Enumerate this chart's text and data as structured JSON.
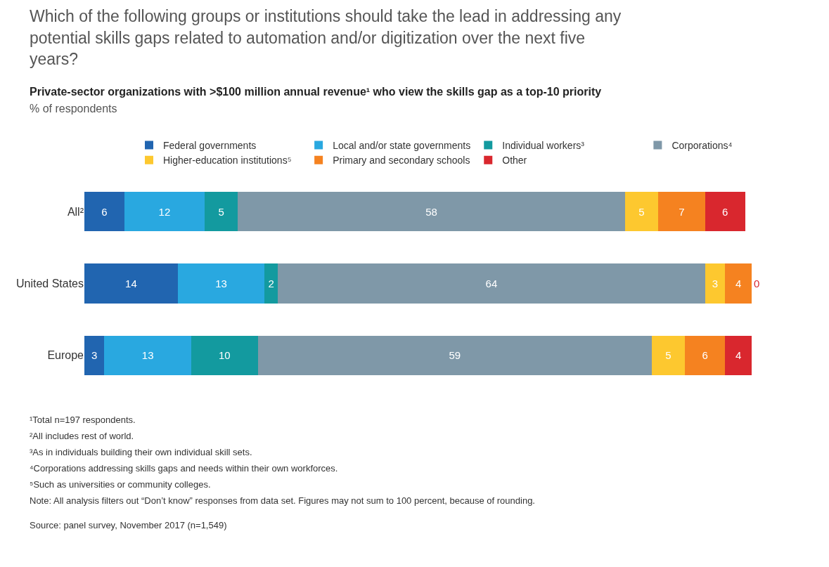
{
  "chart_data": {
    "type": "bar",
    "orientation": "horizontal",
    "stacked": true,
    "data_labels": true,
    "legend": "top",
    "title": "Which of the following groups or institutions should take the lead in addressing any potential skills gaps related to automation and/or digitization over the next five years?",
    "subtitle": "Private-sector organizations with >$100 million annual revenue¹ who view the skills gap as a top-10 priority",
    "categories": [
      "All²",
      "United States",
      "Europe"
    ],
    "series": [
      {
        "name": "Federal governments",
        "color": "#2165b0",
        "values": [
          6,
          14,
          3
        ]
      },
      {
        "name": "Local and/or state governments",
        "color": "#29a8e0",
        "values": [
          12,
          13,
          13
        ]
      },
      {
        "name": "Individual workers³",
        "color": "#139a9f",
        "values": [
          5,
          2,
          10
        ]
      },
      {
        "name": "Corporations⁴",
        "color": "#7f98a8",
        "values": [
          58,
          64,
          59
        ]
      },
      {
        "name": "Higher-education institutions⁵",
        "color": "#fdc82f",
        "values": [
          5,
          3,
          5
        ]
      },
      {
        "name": "Primary and secondary schools",
        "color": "#f58220",
        "values": [
          7,
          4,
          6
        ]
      },
      {
        "name": "Other",
        "color": "#d9272e",
        "values": [
          6,
          0,
          4
        ]
      }
    ],
    "annotations": [
      "% of respondents",
      "¹Total n=197 respondents.",
      "²All includes rest of world.",
      "³As in individuals building their own individual skill sets.",
      "⁴Corporations addressing skills gaps and needs within their own workforces.",
      "⁵Such as universities or community colleges.",
      "Note: All analysis filters out “Don’t know” responses from data set. Figures may not sum to 100 percent, because of rounding.",
      "Source: panel survey, November 2017 (n=1,549)"
    ]
  }
}
